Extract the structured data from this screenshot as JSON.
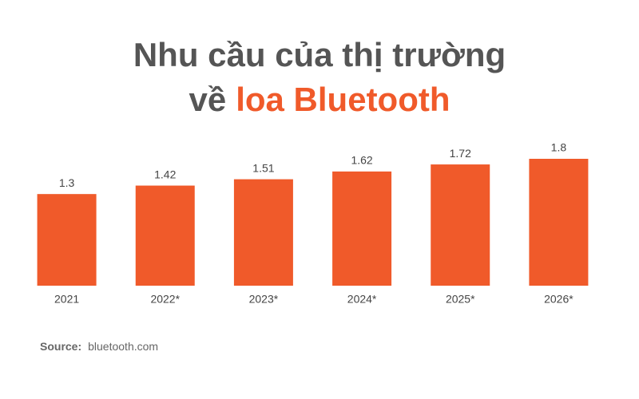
{
  "chart_data": {
    "type": "bar",
    "title": {
      "line1": "Nhu cầu của thị trường",
      "line2_prefix": "về",
      "line2_highlight": "loa Bluetooth"
    },
    "categories": [
      "2021",
      "2022*",
      "2023*",
      "2024*",
      "2025*",
      "2026*"
    ],
    "values": [
      1.3,
      1.42,
      1.51,
      1.62,
      1.72,
      1.8
    ],
    "color": "#f05a2a",
    "source_label": "Source:",
    "source": "bluetooth.com"
  }
}
